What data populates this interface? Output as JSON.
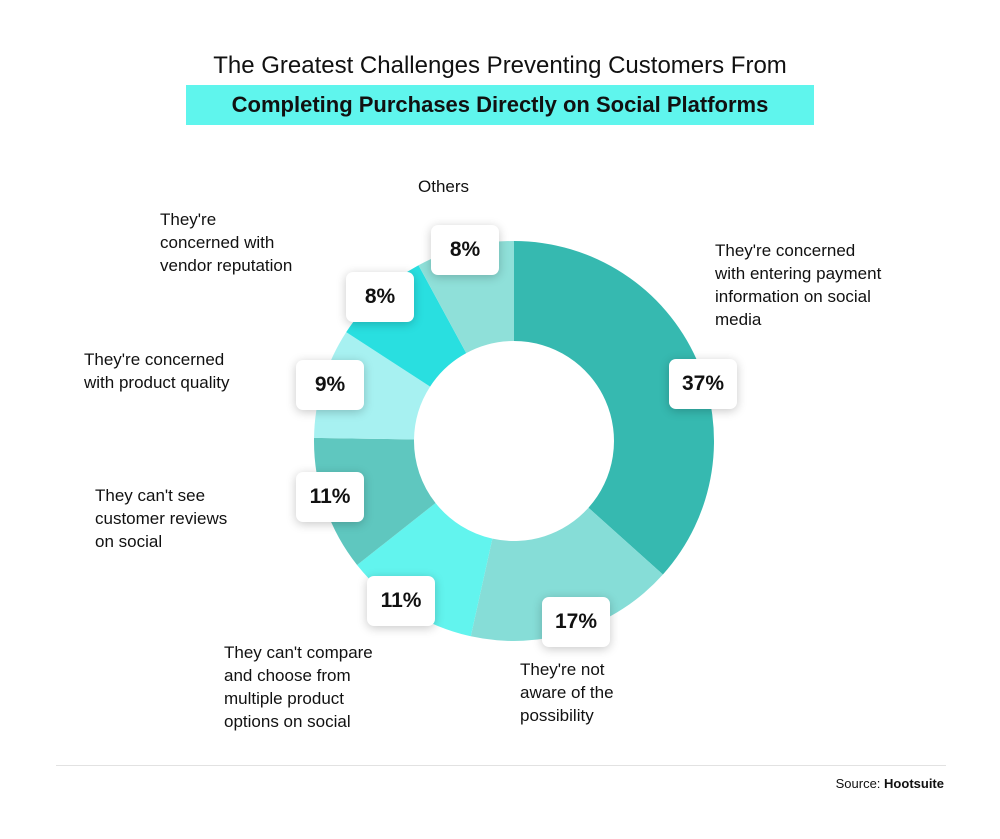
{
  "title": {
    "line1": "The Greatest Challenges Preventing Customers From",
    "line2": "Completing Purchases Directly on Social Platforms"
  },
  "source": {
    "label": "Source:",
    "name": "Hootsuite"
  },
  "colors": {
    "highlight": "#5ff5ed",
    "slices": [
      "#36b9b0",
      "#86ddd7",
      "#62f4ee",
      "#5fc7bf",
      "#a7f1f1",
      "#29dfe0",
      "#8fe0d9"
    ]
  },
  "chart_data": {
    "type": "pie",
    "subtype": "donut",
    "title": "The Greatest Challenges Preventing Customers From Completing Purchases Directly on Social Platforms",
    "categories": [
      "They're concerned with entering payment information on social media",
      "They're not aware of the possibility",
      "They can't compare and choose from multiple product options on social",
      "They can't see customer reviews on social",
      "They're concerned with product quality",
      "They're concerned with vendor reputation",
      "Others"
    ],
    "values": [
      37,
      17,
      11,
      11,
      9,
      8,
      8
    ],
    "value_labels": [
      "37%",
      "17%",
      "11%",
      "11%",
      "9%",
      "8%",
      "8%"
    ],
    "category_lines": [
      [
        "They're concerned",
        "with entering payment",
        "information on social",
        "media"
      ],
      [
        "They're not",
        "aware of the",
        "possibility"
      ],
      [
        "They can't compare",
        "and choose from",
        "multiple product",
        "options on social"
      ],
      [
        "They can't see",
        "customer reviews",
        "on social"
      ],
      [
        "They're concerned",
        "with product quality"
      ],
      [
        "They're",
        "concerned with",
        "vendor reputation"
      ],
      [
        "Others"
      ]
    ]
  }
}
